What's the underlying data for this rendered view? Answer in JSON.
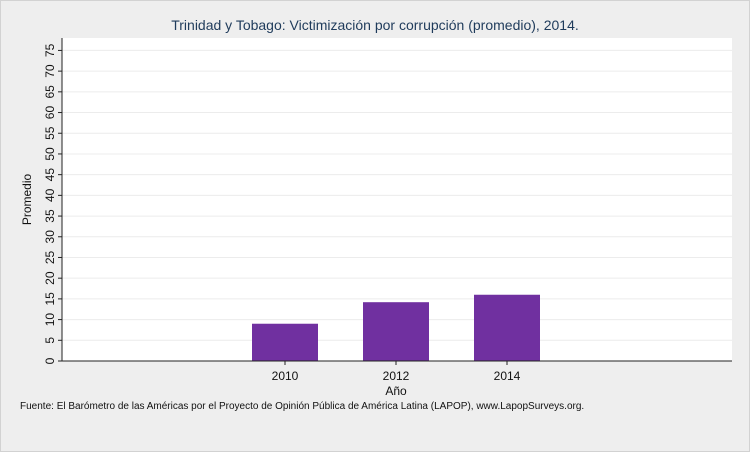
{
  "chart_data": {
    "type": "bar",
    "title": "Trinidad y Tobago: Victimización por corrupción (promedio), 2014.",
    "xlabel": "Año",
    "ylabel": "Promedio",
    "categories": [
      "2010",
      "2012",
      "2014"
    ],
    "values": [
      9,
      14.2,
      16
    ],
    "ylim": [
      0,
      78
    ],
    "yticks": [
      "0",
      "5",
      "10",
      "15",
      "20",
      "25",
      "30",
      "35",
      "40",
      "45",
      "50",
      "55",
      "60",
      "65",
      "70",
      "75"
    ],
    "grid": true,
    "bar_color": "#7030a0"
  },
  "source": "Fuente: El Barómetro de las Américas por el Proyecto de Opinión Pública de América Latina (LAPOP), www.LapopSurveys.org."
}
